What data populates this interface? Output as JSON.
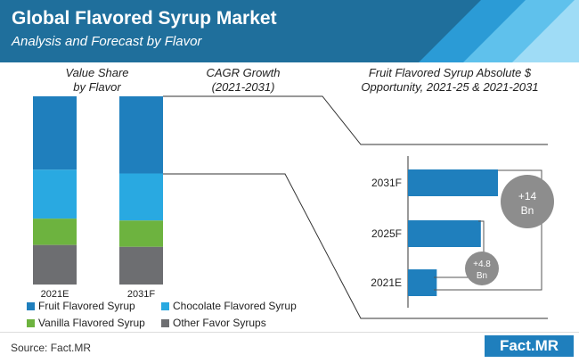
{
  "header": {
    "title": "Global Flavored Syrup Market",
    "subtitle": "Analysis and Forecast by Flavor"
  },
  "panels": {
    "value_share": "Value Share\nby Flavor",
    "cagr": "CAGR Growth\n(2021-2031)",
    "fruit_opportunity": "Fruit Flavored Syrup Absolute $\nOpportunity, 2021-25 & 2021-2031"
  },
  "colors": {
    "fruit": "#1f7fbd",
    "chocolate": "#29a9e1",
    "vanilla": "#6db33f",
    "other": "#6d6e71",
    "bubble": "#8d8d8d",
    "header": "#1f6f9c"
  },
  "source": "Source: Fact.MR",
  "logo": "Fact.MR",
  "chart_data": [
    {
      "type": "bar",
      "stacked": true,
      "categories": [
        "2021E",
        "2031F"
      ],
      "series": [
        {
          "name": "Fruit Flavored Syrup",
          "values": [
            39,
            41
          ]
        },
        {
          "name": "Chocolate Flavored Syrup",
          "values": [
            26,
            25
          ]
        },
        {
          "name": "Vanilla Flavored Syrup",
          "values": [
            14,
            14
          ]
        },
        {
          "name": "Other Favor Syrups",
          "values": [
            21,
            20
          ]
        }
      ],
      "ylim": [
        0,
        100
      ],
      "legend": "bottom"
    },
    {
      "type": "bar",
      "orientation": "horizontal",
      "categories": [
        "2031F",
        "2025F",
        "2021E"
      ],
      "values": [
        100,
        81,
        32
      ],
      "annotations": [
        "+14\nBn",
        "+4.8\nBn"
      ],
      "xlim": [
        0,
        100
      ]
    }
  ]
}
